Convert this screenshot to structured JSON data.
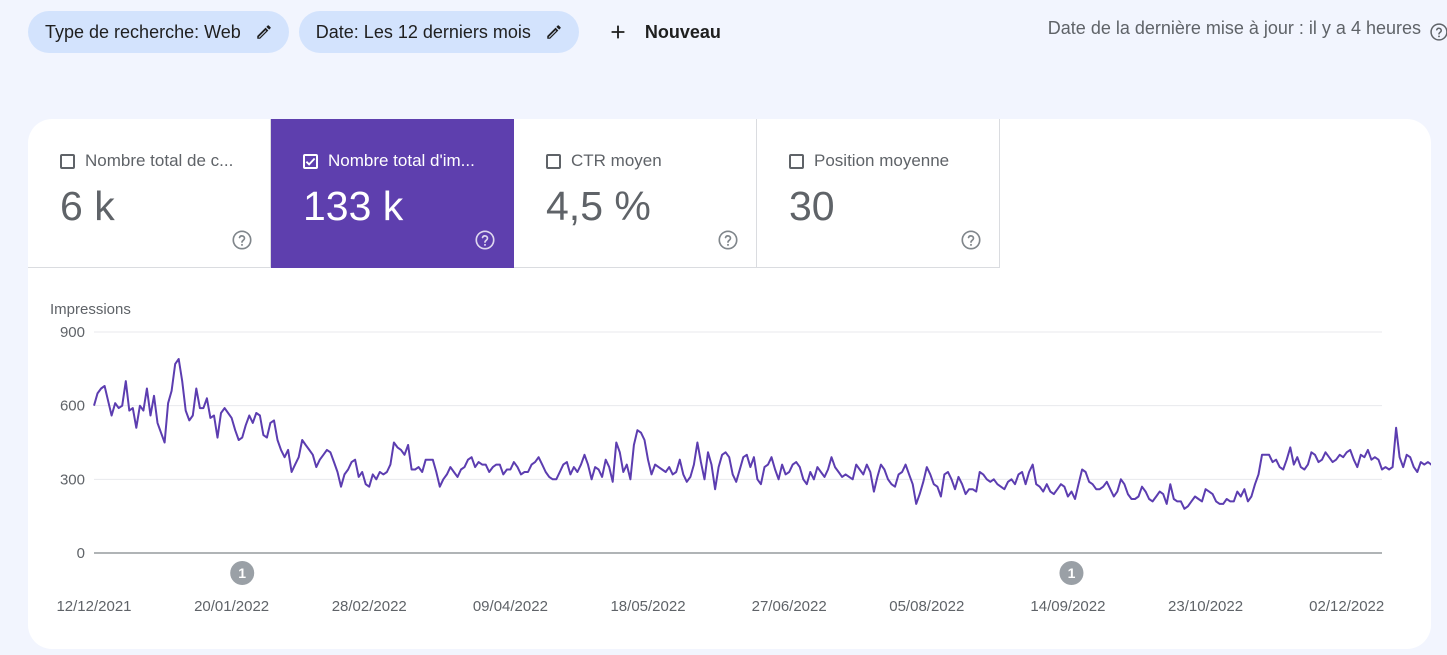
{
  "filters": {
    "search_type": "Type de recherche: Web",
    "date": "Date: Les 12 derniers mois",
    "new_label": "Nouveau"
  },
  "last_update": "Date de la dernière mise à jour : il y a 4 heures",
  "icons": {
    "edit": "pencil-icon",
    "add": "plus-icon",
    "help": "help-circle-icon",
    "checkbox": "checkbox-icon",
    "annotation": "annotation-marker"
  },
  "metrics": [
    {
      "label": "Nombre total de c...",
      "value": "6 k",
      "checked": false
    },
    {
      "label": "Nombre total d'im...",
      "value": "133 k",
      "checked": true
    },
    {
      "label": "CTR moyen",
      "value": "4,5 %",
      "checked": false
    },
    {
      "label": "Position moyenne",
      "value": "30",
      "checked": false
    }
  ],
  "colors": {
    "accent": "#5e3fae",
    "line": "#5c3db0",
    "chip_bg": "#d3e3fd",
    "page_bg": "#f2f5fe"
  },
  "chart_data": {
    "type": "line",
    "ylabel": "Impressions",
    "ylim": [
      0,
      900
    ],
    "y_ticks": [
      "0",
      "300",
      "600",
      "900"
    ],
    "x_tick_labels": [
      "12/12/2021",
      "20/01/2022",
      "28/02/2022",
      "09/04/2022",
      "18/05/2022",
      "27/06/2022",
      "05/08/2022",
      "14/09/2022",
      "23/10/2022",
      "02/12/2022"
    ],
    "x_range": [
      "12/12/2021",
      "12/12/2022"
    ],
    "grid": true,
    "annotations": [
      {
        "date": "23/01/2022",
        "label": "1"
      },
      {
        "date": "15/09/2022",
        "label": "1"
      }
    ],
    "series": [
      {
        "start_date": "12/12/2021",
        "values": [
          600,
          650,
          670,
          680,
          620,
          560,
          610,
          590,
          600,
          700,
          580,
          590,
          510,
          600,
          580,
          670,
          560,
          640,
          530,
          490,
          450,
          610,
          660,
          770,
          790,
          700,
          580,
          540,
          560,
          670,
          590,
          590,
          630,
          550,
          560,
          470,
          570,
          590,
          570,
          550,
          500,
          460,
          470,
          520,
          560,
          530,
          570,
          560,
          480,
          470,
          530,
          540,
          460,
          420,
          390,
          420,
          330,
          360,
          390,
          460,
          440,
          420,
          400,
          350,
          380,
          400,
          420,
          410,
          370,
          330,
          270,
          320,
          340,
          370,
          380,
          310,
          330,
          280,
          270,
          320,
          300,
          330,
          320,
          330,
          360,
          450,
          430,
          420,
          400,
          440,
          340,
          340,
          350,
          330,
          380,
          380,
          380,
          330,
          270,
          300,
          320,
          350,
          330,
          310,
          340,
          350,
          380,
          390,
          350,
          370,
          360,
          360,
          330,
          350,
          360,
          360,
          320,
          340,
          340,
          370,
          350,
          320,
          330,
          330,
          360,
          370,
          390,
          360,
          330,
          310,
          300,
          300,
          330,
          360,
          370,
          320,
          350,
          330,
          360,
          400,
          360,
          300,
          350,
          340,
          310,
          380,
          350,
          290,
          450,
          410,
          330,
          360,
          300,
          440,
          500,
          490,
          460,
          380,
          320,
          360,
          350,
          340,
          330,
          350,
          320,
          330,
          380,
          320,
          290,
          310,
          360,
          450,
          370,
          300,
          410,
          360,
          260,
          350,
          400,
          410,
          390,
          320,
          290,
          340,
          390,
          400,
          350,
          390,
          300,
          280,
          350,
          360,
          390,
          340,
          300,
          360,
          320,
          330,
          360,
          370,
          350,
          300,
          280,
          330,
          300,
          350,
          330,
          310,
          340,
          390,
          350,
          330,
          310,
          320,
          310,
          300,
          360,
          340,
          320,
          360,
          330,
          250,
          310,
          360,
          340,
          300,
          280,
          270,
          320,
          330,
          360,
          320,
          280,
          200,
          240,
          290,
          350,
          320,
          280,
          270,
          230,
          320,
          330,
          300,
          260,
          310,
          280,
          240,
          260,
          260,
          250,
          330,
          320,
          300,
          290,
          300,
          280,
          270,
          260,
          290,
          300,
          280,
          320,
          330,
          280,
          330,
          360,
          280,
          270,
          250,
          280,
          250,
          240,
          260,
          280,
          270,
          230,
          250,
          220,
          280,
          340,
          330,
          290,
          280,
          260,
          260,
          270,
          290,
          260,
          230,
          250,
          300,
          280,
          240,
          220,
          220,
          230,
          270,
          250,
          220,
          210,
          230,
          250,
          240,
          200,
          280,
          220,
          210,
          210,
          180,
          190,
          210,
          230,
          220,
          210,
          260,
          250,
          240,
          210,
          200,
          200,
          220,
          210,
          210,
          250,
          230,
          260,
          210,
          230,
          280,
          320,
          400,
          400,
          400,
          370,
          380,
          350,
          340,
          380,
          430,
          360,
          390,
          350,
          340,
          360,
          410,
          400,
          370,
          380,
          410,
          390,
          370,
          380,
          400,
          390,
          410,
          420,
          380,
          350,
          400,
          390,
          420,
          380,
          390,
          380,
          340,
          350,
          340,
          350,
          510,
          390,
          350,
          400,
          390,
          350,
          330,
          370,
          360,
          370,
          360,
          330,
          300,
          350,
          380,
          390,
          370,
          340,
          300,
          330,
          340,
          350,
          330,
          290,
          310,
          320,
          340,
          350,
          340,
          290,
          270,
          350,
          350,
          360,
          310,
          310,
          330,
          290,
          280,
          320,
          330,
          300,
          320,
          320,
          380,
          360,
          360,
          320,
          340,
          360,
          380,
          380,
          390,
          340,
          330,
          380,
          360,
          350,
          340,
          320,
          300,
          300,
          320,
          330,
          310,
          350,
          380,
          370,
          310,
          320,
          340,
          300,
          320,
          350,
          400,
          380,
          350,
          330,
          320,
          340,
          370,
          330,
          330,
          340,
          340,
          350,
          370,
          360,
          340,
          330,
          300,
          310,
          330,
          330,
          290,
          300,
          350,
          420,
          380,
          340,
          310,
          330,
          350,
          370,
          380,
          330,
          320,
          360,
          350,
          340,
          320,
          320,
          340,
          360,
          380,
          390,
          360,
          330,
          310,
          340,
          350,
          330,
          290,
          300,
          320,
          340,
          350,
          330,
          310,
          330,
          350,
          330,
          300,
          300,
          340
        ]
      }
    ]
  }
}
